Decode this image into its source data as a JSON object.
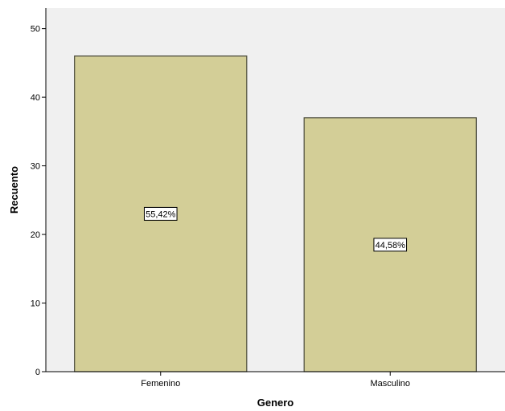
{
  "chart_data": {
    "type": "bar",
    "title": "",
    "xlabel": "Genero",
    "ylabel": "Recuento",
    "categories": [
      "Femenino",
      "Masculino"
    ],
    "values": [
      46,
      37
    ],
    "data_labels": [
      "55,42%",
      "44,58%"
    ],
    "ylim": [
      0,
      53
    ],
    "yticks": [
      "0",
      "10",
      "20",
      "30",
      "40",
      "50"
    ],
    "grid": false,
    "legend": "none",
    "colors": {
      "plot_background": "#f0f0f0",
      "bar_fill": "#d3ce97",
      "bar_stroke": "#4a4a3a",
      "axis": "#000000"
    }
  }
}
